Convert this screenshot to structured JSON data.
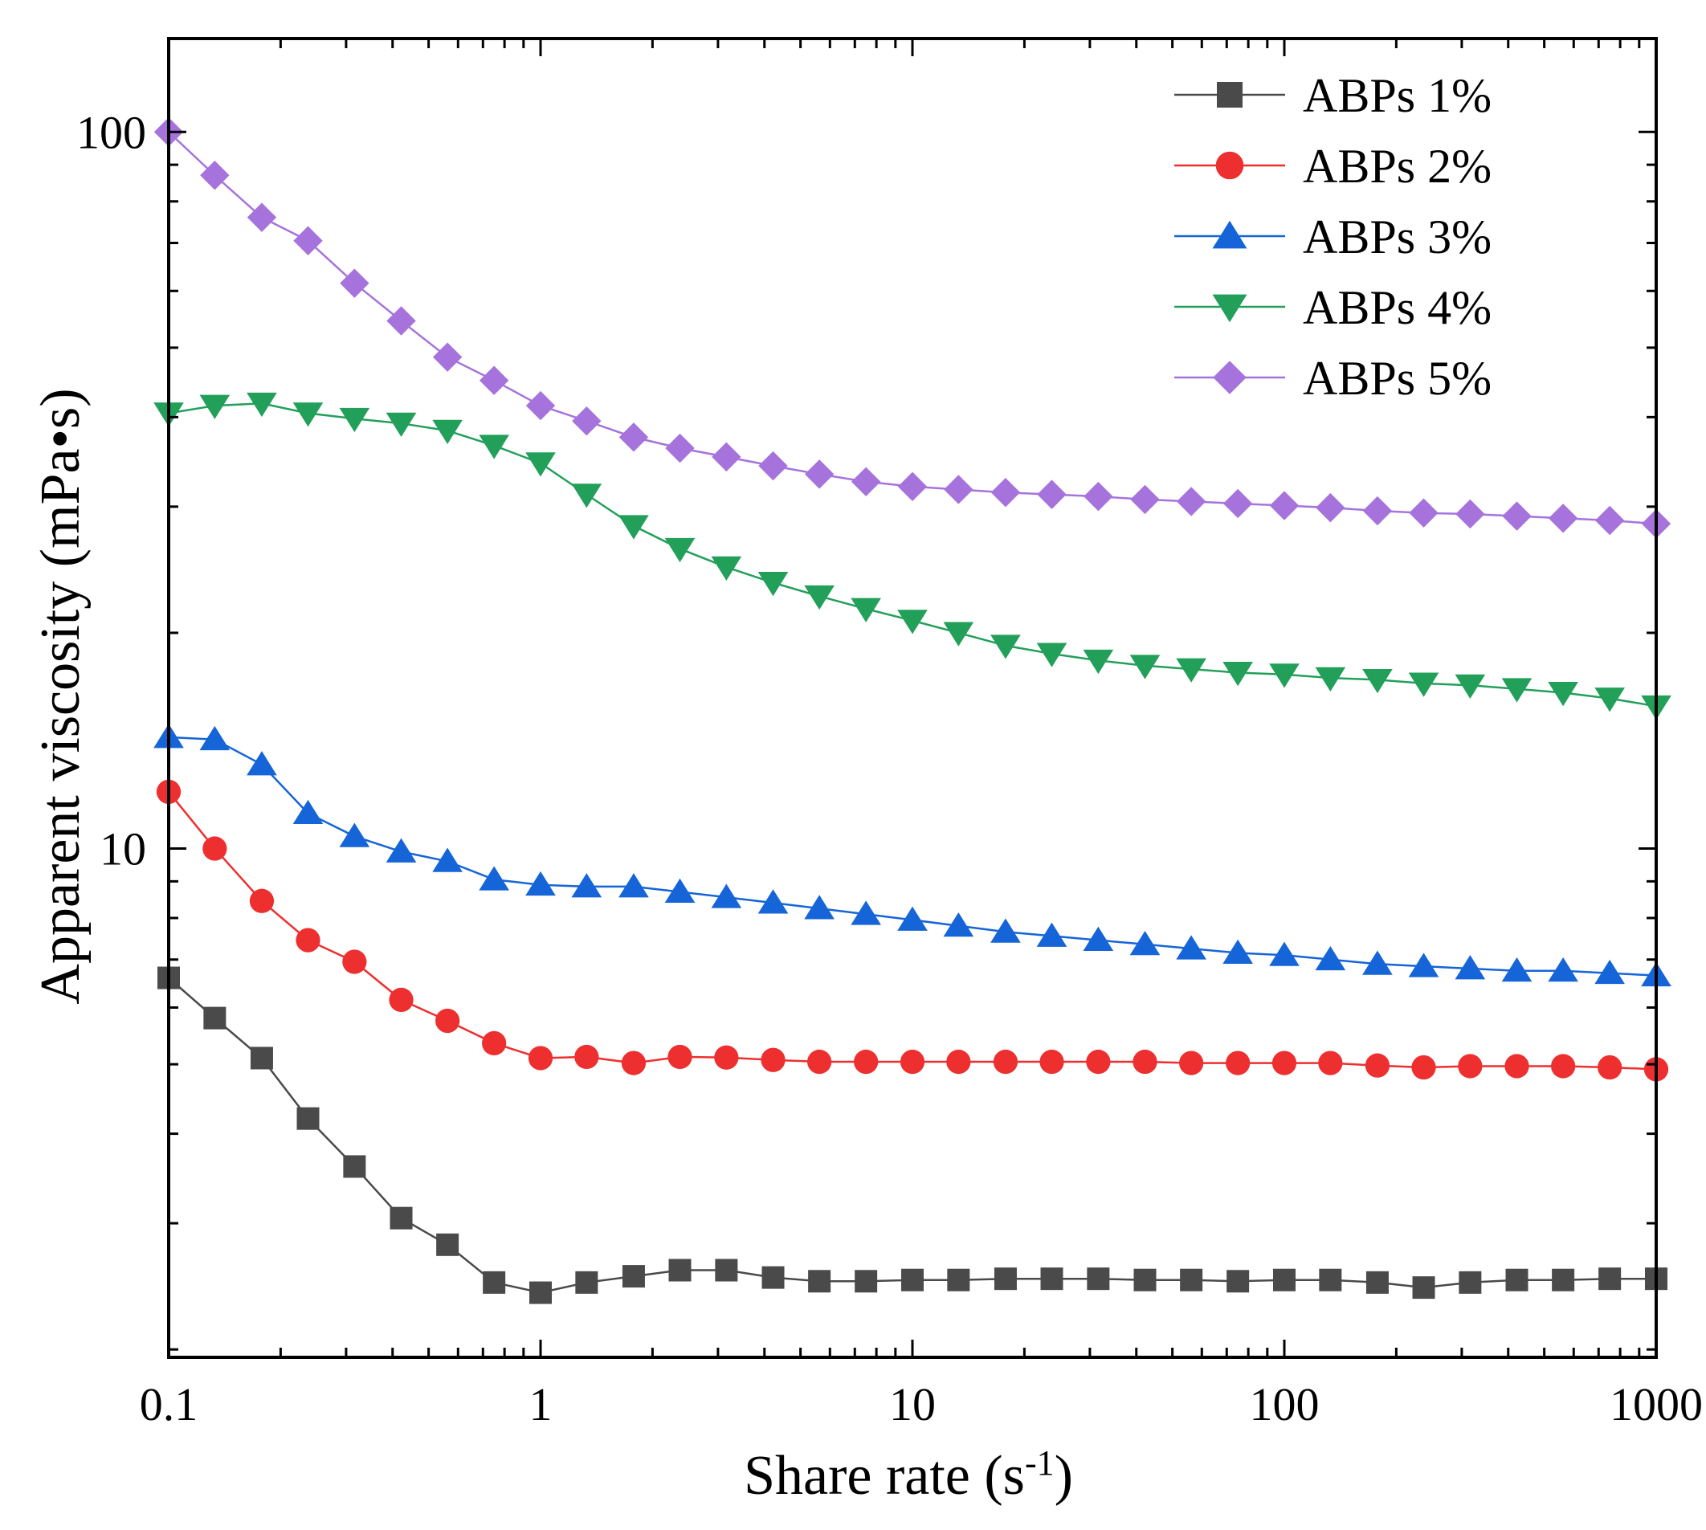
{
  "chart_data": {
    "type": "line",
    "title": "",
    "xlabel": "Share rate",
    "xlabel_unit_prefix": "(s",
    "xlabel_unit_exp": "-1",
    "xlabel_unit_suffix": ")",
    "ylabel": "Apparent viscosity (mPa•s)",
    "xscale": "log",
    "yscale": "log",
    "xlim": [
      0.1,
      1000
    ],
    "ylim": [
      1.95,
      135
    ],
    "x_ticks": [
      {
        "value": 0.1,
        "label": "0.1"
      },
      {
        "value": 1,
        "label": "1"
      },
      {
        "value": 10,
        "label": "10"
      },
      {
        "value": 100,
        "label": "100"
      },
      {
        "value": 1000,
        "label": "1000"
      }
    ],
    "y_ticks": [
      {
        "value": 10,
        "label": "10"
      },
      {
        "value": 100,
        "label": "100"
      }
    ],
    "legend_position": "top-right",
    "x": [
      0.1,
      0.133,
      0.178,
      0.237,
      0.316,
      0.422,
      0.562,
      0.75,
      1,
      1.33,
      1.78,
      2.37,
      3.16,
      4.22,
      5.62,
      7.5,
      10,
      13.3,
      17.8,
      23.7,
      31.6,
      42.2,
      56.2,
      75,
      100,
      133,
      178,
      237,
      316,
      422,
      562,
      750,
      1000
    ],
    "series": [
      {
        "name": "ABPs 1%",
        "color": "#4a4a4a",
        "marker": "square",
        "values": [
          6.6,
          5.8,
          5.1,
          4.2,
          3.6,
          3.05,
          2.8,
          2.48,
          2.4,
          2.48,
          2.53,
          2.58,
          2.58,
          2.52,
          2.49,
          2.49,
          2.5,
          2.5,
          2.51,
          2.51,
          2.51,
          2.5,
          2.5,
          2.49,
          2.5,
          2.5,
          2.48,
          2.44,
          2.48,
          2.5,
          2.5,
          2.51,
          2.51
        ]
      },
      {
        "name": "ABPs 2%",
        "color": "#ee2f2f",
        "marker": "circle",
        "values": [
          12.0,
          10.0,
          8.45,
          7.45,
          6.95,
          6.15,
          5.75,
          5.35,
          5.1,
          5.12,
          5.02,
          5.12,
          5.11,
          5.07,
          5.04,
          5.04,
          5.04,
          5.04,
          5.04,
          5.04,
          5.04,
          5.04,
          5.02,
          5.02,
          5.02,
          5.02,
          4.98,
          4.95,
          4.97,
          4.97,
          4.97,
          4.95,
          4.92
        ]
      },
      {
        "name": "ABPs 3%",
        "color": "#1565d8",
        "marker": "triangle-up",
        "values": [
          14.3,
          14.2,
          13.1,
          11.2,
          10.4,
          9.9,
          9.6,
          9.05,
          8.9,
          8.85,
          8.85,
          8.7,
          8.55,
          8.4,
          8.25,
          8.1,
          7.95,
          7.8,
          7.65,
          7.55,
          7.45,
          7.35,
          7.25,
          7.15,
          7.1,
          7.0,
          6.9,
          6.85,
          6.8,
          6.75,
          6.75,
          6.7,
          6.65
        ]
      },
      {
        "name": "ABPs  4%",
        "color": "#22a05a",
        "marker": "triangle-down",
        "values": [
          40.5,
          41.5,
          41.8,
          40.5,
          39.8,
          39.2,
          38.3,
          36.5,
          34.5,
          31.2,
          28.2,
          26.2,
          24.7,
          23.5,
          22.5,
          21.6,
          20.8,
          20.0,
          19.2,
          18.7,
          18.3,
          18.0,
          17.8,
          17.6,
          17.5,
          17.3,
          17.2,
          17.0,
          16.9,
          16.7,
          16.5,
          16.2,
          15.8
        ]
      },
      {
        "name": "ABPs  5%",
        "color": "#a673dc",
        "marker": "diamond",
        "values": [
          100,
          87,
          76,
          70.5,
          61.5,
          54.5,
          48.5,
          45,
          41.5,
          39.5,
          37.5,
          36.2,
          35.2,
          34.2,
          33.3,
          32.5,
          32.0,
          31.7,
          31.4,
          31.2,
          31.0,
          30.7,
          30.5,
          30.3,
          30.1,
          29.9,
          29.6,
          29.4,
          29.3,
          29.1,
          28.9,
          28.7,
          28.4
        ]
      }
    ]
  }
}
